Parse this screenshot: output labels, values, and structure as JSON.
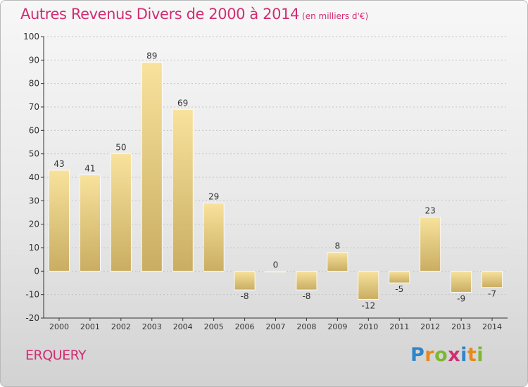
{
  "header": {
    "title": "Autres Revenus Divers de 2000 à 2014",
    "unit": "(en milliers d'€)"
  },
  "footer": {
    "commune": "ERQUERY",
    "logo_letters": [
      "P",
      "r",
      "o",
      "x",
      "i",
      "t",
      "i"
    ],
    "logo_colors": [
      "#2e86c9",
      "#e8891c",
      "#7cb82f",
      "#d12d72",
      "#2e86c9",
      "#e8891c",
      "#7cb82f"
    ]
  },
  "colors": {
    "title": "#d12d72",
    "bar_light": "#f8e29c",
    "bar_dark": "#c9ad62",
    "axis": "#333333",
    "grid": "#c4c4c4"
  },
  "chart_data": {
    "type": "bar",
    "categories": [
      "2000",
      "2001",
      "2002",
      "2003",
      "2004",
      "2005",
      "2006",
      "2007",
      "2008",
      "2009",
      "2010",
      "2011",
      "2012",
      "2013",
      "2014"
    ],
    "values": [
      43,
      41,
      50,
      89,
      69,
      29,
      -8,
      0,
      -8,
      8,
      -12,
      -5,
      23,
      -9,
      -7
    ],
    "ylim": [
      -20,
      100
    ],
    "yticks": [
      -20,
      -10,
      0,
      10,
      20,
      30,
      40,
      50,
      60,
      70,
      80,
      90,
      100
    ],
    "grid": "horizontal dotted",
    "legend": "none"
  }
}
